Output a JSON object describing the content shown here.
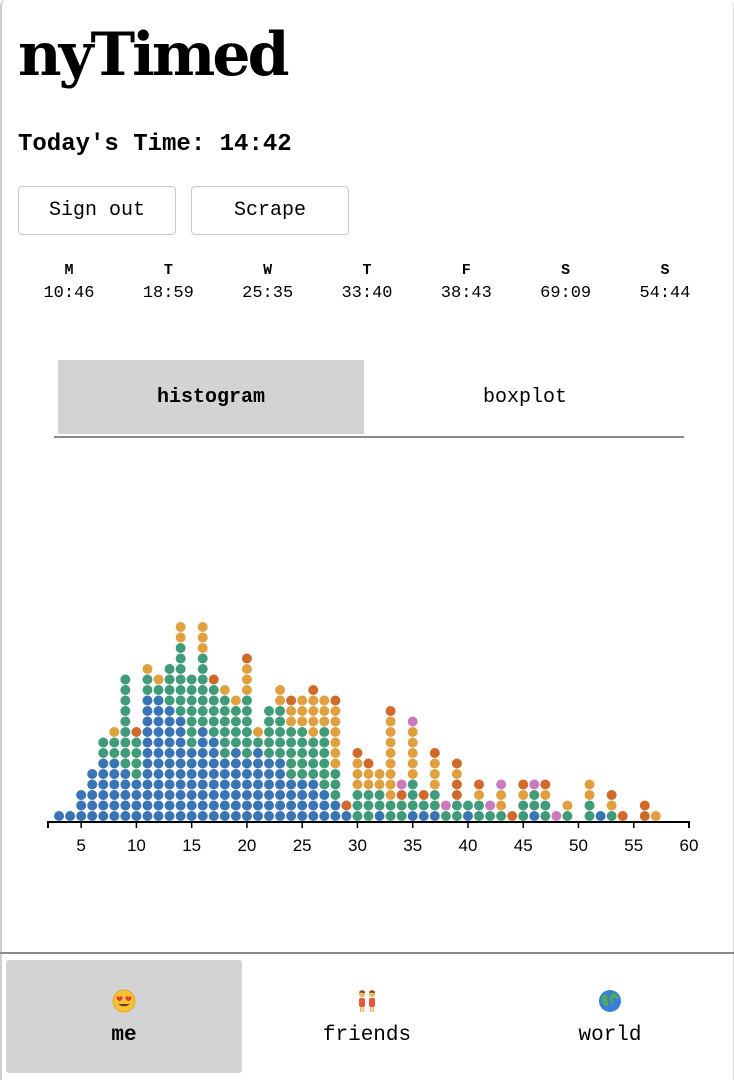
{
  "app": {
    "title": "nyTimed"
  },
  "today": {
    "text": "Today's Time: 14:42"
  },
  "buttons": {
    "sign_out": "Sign out",
    "scrape": "Scrape"
  },
  "week": [
    {
      "day": "M",
      "time": "10:46"
    },
    {
      "day": "T",
      "time": "18:59"
    },
    {
      "day": "W",
      "time": "25:35"
    },
    {
      "day": "T",
      "time": "33:40"
    },
    {
      "day": "F",
      "time": "38:43"
    },
    {
      "day": "S",
      "time": "69:09"
    },
    {
      "day": "S",
      "time": "54:44"
    }
  ],
  "view_tabs": {
    "histogram": "histogram",
    "boxplot": "boxplot",
    "active": "histogram"
  },
  "nav": [
    {
      "label": "me",
      "icon": "heart-eyes-emoji-icon",
      "active": true
    },
    {
      "label": "friends",
      "icon": "two-people-emoji-icon",
      "active": false
    },
    {
      "label": "world",
      "icon": "globe-emoji-icon",
      "active": false
    }
  ],
  "colors": {
    "blue": "#3a74b4",
    "green": "#3f9b78",
    "yellow": "#e0a040",
    "orange": "#cf6a2a",
    "pink": "#cc7ac0",
    "axis": "#000000"
  },
  "chart_data": {
    "type": "scatter",
    "subtype": "dot histogram (stacked dots, one per solve, colored by weekday group)",
    "title": "",
    "xlabel": "",
    "ylabel": "",
    "xlim": [
      2,
      60
    ],
    "xticks": [
      5,
      10,
      15,
      20,
      25,
      30,
      35,
      40,
      45,
      50,
      55,
      60
    ],
    "grid": false,
    "bins": [
      {
        "x": 3,
        "stack": [
          "b"
        ]
      },
      {
        "x": 4,
        "stack": [
          "b"
        ]
      },
      {
        "x": 5,
        "stack": [
          "b",
          "b",
          "b"
        ]
      },
      {
        "x": 6,
        "stack": [
          "b",
          "b",
          "b",
          "b",
          "b"
        ]
      },
      {
        "x": 7,
        "stack": [
          "b",
          "b",
          "b",
          "b",
          "b",
          "b",
          "g",
          "g"
        ]
      },
      {
        "x": 8,
        "stack": [
          "b",
          "b",
          "b",
          "b",
          "b",
          "b",
          "g",
          "g",
          "y"
        ]
      },
      {
        "x": 9,
        "stack": [
          "b",
          "b",
          "b",
          "b",
          "b",
          "g",
          "g",
          "g",
          "g",
          "g",
          "g",
          "g",
          "g",
          "g"
        ]
      },
      {
        "x": 10,
        "stack": [
          "b",
          "b",
          "b",
          "b",
          "g",
          "g",
          "g",
          "g",
          "o"
        ]
      },
      {
        "x": 11,
        "stack": [
          "b",
          "b",
          "b",
          "b",
          "b",
          "b",
          "b",
          "b",
          "b",
          "b",
          "b",
          "b",
          "g",
          "g",
          "y"
        ]
      },
      {
        "x": 12,
        "stack": [
          "b",
          "b",
          "b",
          "b",
          "b",
          "b",
          "b",
          "b",
          "b",
          "b",
          "b",
          "b",
          "g",
          "y"
        ]
      },
      {
        "x": 13,
        "stack": [
          "b",
          "b",
          "b",
          "b",
          "b",
          "b",
          "b",
          "b",
          "b",
          "b",
          "b",
          "g",
          "g",
          "g",
          "g"
        ]
      },
      {
        "x": 14,
        "stack": [
          "b",
          "b",
          "b",
          "b",
          "b",
          "b",
          "b",
          "b",
          "b",
          "b",
          "g",
          "g",
          "g",
          "g",
          "g",
          "g",
          "g",
          "y",
          "y"
        ]
      },
      {
        "x": 15,
        "stack": [
          "b",
          "b",
          "b",
          "b",
          "b",
          "b",
          "b",
          "g",
          "g",
          "g",
          "g",
          "g",
          "g",
          "g"
        ]
      },
      {
        "x": 16,
        "stack": [
          "b",
          "b",
          "b",
          "b",
          "b",
          "b",
          "b",
          "b",
          "b",
          "g",
          "g",
          "g",
          "g",
          "g",
          "g",
          "g",
          "y",
          "y",
          "y"
        ]
      },
      {
        "x": 17,
        "stack": [
          "b",
          "b",
          "b",
          "b",
          "b",
          "b",
          "b",
          "b",
          "g",
          "g",
          "g",
          "g",
          "g",
          "o"
        ]
      },
      {
        "x": 18,
        "stack": [
          "b",
          "b",
          "b",
          "b",
          "b",
          "b",
          "g",
          "g",
          "g",
          "g",
          "g",
          "g",
          "y"
        ]
      },
      {
        "x": 19,
        "stack": [
          "b",
          "b",
          "b",
          "b",
          "b",
          "b",
          "b",
          "g",
          "g",
          "g",
          "g",
          "y"
        ]
      },
      {
        "x": 20,
        "stack": [
          "b",
          "b",
          "b",
          "b",
          "b",
          "b",
          "g",
          "g",
          "g",
          "g",
          "g",
          "g",
          "y",
          "y",
          "y",
          "o"
        ]
      },
      {
        "x": 21,
        "stack": [
          "b",
          "b",
          "b",
          "b",
          "b",
          "b",
          "b",
          "g",
          "y"
        ]
      },
      {
        "x": 22,
        "stack": [
          "b",
          "b",
          "b",
          "b",
          "b",
          "b",
          "g",
          "g",
          "g",
          "g",
          "g"
        ]
      },
      {
        "x": 23,
        "stack": [
          "b",
          "b",
          "b",
          "b",
          "b",
          "b",
          "g",
          "g",
          "g",
          "g",
          "g",
          "y",
          "y"
        ]
      },
      {
        "x": 24,
        "stack": [
          "b",
          "b",
          "b",
          "b",
          "g",
          "g",
          "g",
          "g",
          "g",
          "y",
          "y",
          "o"
        ]
      },
      {
        "x": 25,
        "stack": [
          "b",
          "b",
          "b",
          "b",
          "g",
          "g",
          "g",
          "g",
          "g",
          "y",
          "y",
          "y"
        ]
      },
      {
        "x": 26,
        "stack": [
          "b",
          "b",
          "b",
          "b",
          "g",
          "g",
          "g",
          "g",
          "y",
          "y",
          "y",
          "y",
          "o"
        ]
      },
      {
        "x": 27,
        "stack": [
          "b",
          "b",
          "b",
          "g",
          "g",
          "g",
          "g",
          "g",
          "g",
          "y",
          "y",
          "y"
        ]
      },
      {
        "x": 28,
        "stack": [
          "b",
          "b",
          "g",
          "g",
          "g",
          "y",
          "y",
          "y",
          "y",
          "y",
          "y",
          "o"
        ]
      },
      {
        "x": 29,
        "stack": [
          "b",
          "o"
        ]
      },
      {
        "x": 30,
        "stack": [
          "g",
          "g",
          "g",
          "y",
          "y",
          "y",
          "o"
        ]
      },
      {
        "x": 31,
        "stack": [
          "g",
          "g",
          "g",
          "y",
          "y",
          "o"
        ]
      },
      {
        "x": 32,
        "stack": [
          "b",
          "g",
          "g",
          "y",
          "y"
        ]
      },
      {
        "x": 33,
        "stack": [
          "g",
          "g",
          "y",
          "y",
          "y",
          "y",
          "y",
          "y",
          "y",
          "y",
          "o"
        ]
      },
      {
        "x": 34,
        "stack": [
          "g",
          "g",
          "o",
          "p"
        ]
      },
      {
        "x": 35,
        "stack": [
          "b",
          "g",
          "g",
          "g",
          "y",
          "y",
          "y",
          "y",
          "y",
          "p"
        ]
      },
      {
        "x": 36,
        "stack": [
          "b",
          "g",
          "o"
        ]
      },
      {
        "x": 37,
        "stack": [
          "b",
          "g",
          "g",
          "y",
          "y",
          "y",
          "o"
        ]
      },
      {
        "x": 38,
        "stack": [
          "g",
          "p"
        ]
      },
      {
        "x": 39,
        "stack": [
          "g",
          "g",
          "o",
          "o",
          "y",
          "o"
        ]
      },
      {
        "x": 40,
        "stack": [
          "b",
          "g"
        ]
      },
      {
        "x": 41,
        "stack": [
          "g",
          "g",
          "y",
          "o"
        ]
      },
      {
        "x": 42,
        "stack": [
          "g",
          "p"
        ]
      },
      {
        "x": 43,
        "stack": [
          "g",
          "y",
          "y",
          "p"
        ]
      },
      {
        "x": 44,
        "stack": [
          "o"
        ]
      },
      {
        "x": 45,
        "stack": [
          "g",
          "g",
          "y",
          "o"
        ]
      },
      {
        "x": 46,
        "stack": [
          "b",
          "g",
          "g",
          "p"
        ]
      },
      {
        "x": 47,
        "stack": [
          "g",
          "g",
          "y",
          "o"
        ]
      },
      {
        "x": 48,
        "stack": [
          "p"
        ]
      },
      {
        "x": 49,
        "stack": [
          "g",
          "y"
        ]
      },
      {
        "x": 51,
        "stack": [
          "g",
          "g",
          "y",
          "y"
        ]
      },
      {
        "x": 52,
        "stack": [
          "b"
        ]
      },
      {
        "x": 53,
        "stack": [
          "g",
          "y",
          "o"
        ]
      },
      {
        "x": 54,
        "stack": [
          "o"
        ]
      },
      {
        "x": 56,
        "stack": [
          "o",
          "o"
        ]
      },
      {
        "x": 57,
        "stack": [
          "y"
        ]
      }
    ]
  }
}
